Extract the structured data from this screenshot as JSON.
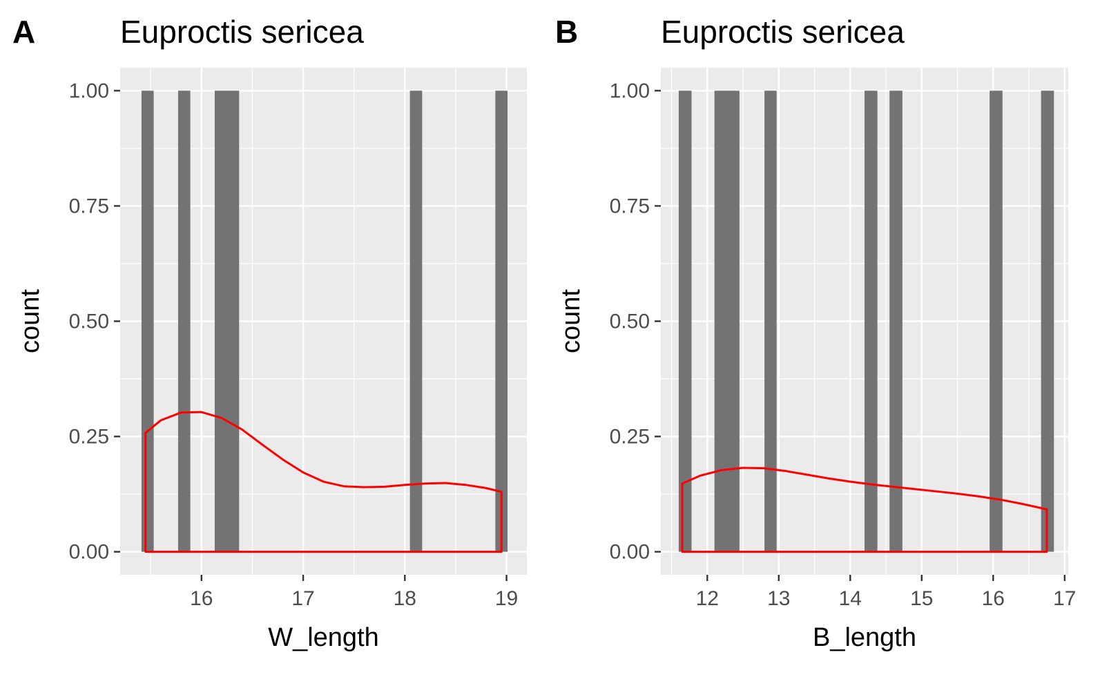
{
  "chart_data": [
    {
      "type": "bar",
      "tag": "A",
      "title": "Euproctis sericea",
      "xlabel": "W_length",
      "ylabel": "count",
      "xlim": [
        15.2,
        19.2
      ],
      "ylim": [
        -0.05,
        1.05
      ],
      "x_ticks": [
        16,
        17,
        18,
        19
      ],
      "y_ticks": [
        "0.00",
        "0.25",
        "0.50",
        "0.75",
        "1.00"
      ],
      "bar_color": "#737373",
      "density_color": "#ff0000",
      "bars": [
        {
          "x0": 15.41,
          "x1": 15.53,
          "count": 1
        },
        {
          "x0": 15.77,
          "x1": 15.89,
          "count": 1
        },
        {
          "x0": 16.13,
          "x1": 16.37,
          "count": 1
        },
        {
          "x0": 18.05,
          "x1": 18.17,
          "count": 1
        },
        {
          "x0": 18.89,
          "x1": 19.01,
          "count": 1
        }
      ],
      "density": {
        "x": [
          15.45,
          15.6,
          15.8,
          16.0,
          16.2,
          16.4,
          16.6,
          16.8,
          17.0,
          17.2,
          17.4,
          17.6,
          17.8,
          18.0,
          18.2,
          18.4,
          18.6,
          18.8,
          18.95
        ],
        "y": [
          0.258,
          0.285,
          0.302,
          0.303,
          0.29,
          0.265,
          0.232,
          0.2,
          0.172,
          0.152,
          0.142,
          0.14,
          0.141,
          0.145,
          0.148,
          0.149,
          0.145,
          0.138,
          0.13
        ]
      }
    },
    {
      "type": "bar",
      "tag": "B",
      "title": "Euproctis sericea",
      "xlabel": "B_length",
      "ylabel": "count",
      "xlim": [
        11.35,
        17.05
      ],
      "ylim": [
        -0.05,
        1.05
      ],
      "x_ticks": [
        12,
        13,
        14,
        15,
        16,
        17
      ],
      "y_ticks": [
        "0.00",
        "0.25",
        "0.50",
        "0.75",
        "1.00"
      ],
      "bar_color": "#737373",
      "density_color": "#ff0000",
      "bars": [
        {
          "x0": 11.6,
          "x1": 11.78,
          "count": 1
        },
        {
          "x0": 12.1,
          "x1": 12.45,
          "count": 1
        },
        {
          "x0": 12.8,
          "x1": 12.97,
          "count": 1
        },
        {
          "x0": 14.2,
          "x1": 14.38,
          "count": 1
        },
        {
          "x0": 14.55,
          "x1": 14.73,
          "count": 1
        },
        {
          "x0": 15.95,
          "x1": 16.13,
          "count": 1
        },
        {
          "x0": 16.67,
          "x1": 16.85,
          "count": 1
        }
      ],
      "density": {
        "x": [
          11.65,
          11.9,
          12.2,
          12.5,
          12.8,
          13.1,
          13.4,
          13.7,
          14.0,
          14.3,
          14.6,
          14.9,
          15.2,
          15.5,
          15.8,
          16.1,
          16.4,
          16.75
        ],
        "y": [
          0.148,
          0.165,
          0.177,
          0.182,
          0.181,
          0.175,
          0.167,
          0.159,
          0.152,
          0.146,
          0.141,
          0.136,
          0.131,
          0.126,
          0.12,
          0.113,
          0.104,
          0.092
        ]
      }
    }
  ]
}
